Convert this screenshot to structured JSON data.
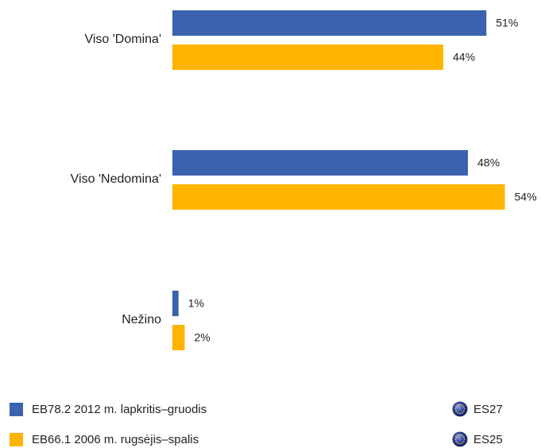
{
  "chart_data": {
    "type": "bar",
    "orientation": "horizontal",
    "categories": [
      "Viso 'Domina'",
      "Viso 'Nedomina'",
      "Nežino"
    ],
    "series": [
      {
        "name": "EB78.2 2012 m. lapkritis–gruodis",
        "region": "ES27",
        "color": "#3a62ad",
        "values": [
          51,
          48,
          1
        ],
        "value_labels": [
          "51%",
          "48%",
          "1%"
        ]
      },
      {
        "name": "EB66.1 2006 m. rugsėjis–spalis",
        "region": "ES25",
        "color": "#ffb400",
        "values": [
          44,
          54,
          2
        ],
        "value_labels": [
          "44%",
          "54%",
          "2%"
        ]
      }
    ]
  }
}
